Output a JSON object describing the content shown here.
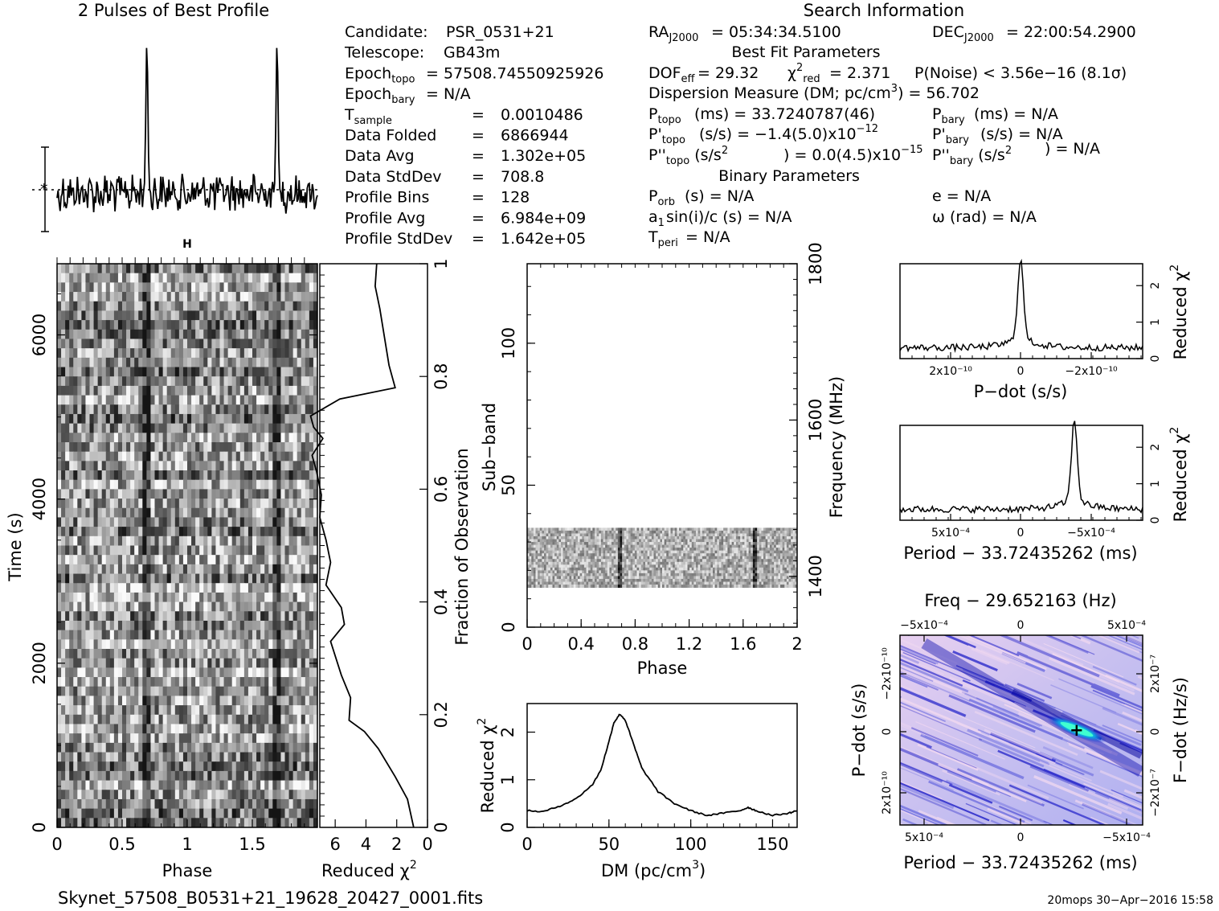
{
  "profile": {
    "title": "2 Pulses of Best Profile"
  },
  "info": {
    "search_title": "Search Information",
    "left": [
      {
        "label": "Candidate:",
        "value": "PSR_0531+21"
      },
      {
        "label": "Telescope:",
        "value": "GB43m"
      },
      {
        "label": "Epoch",
        "sub": "topo",
        "value": "= 57508.74550925926"
      },
      {
        "label": "Epoch",
        "sub": "bary",
        "value": "= N/A"
      },
      {
        "label": "T",
        "sub": "sample",
        "value": "0.0010486"
      },
      {
        "label": "Data Folded",
        "value": "6866944"
      },
      {
        "label": "Data Avg",
        "value": "1.302e+05"
      },
      {
        "label": "Data StdDev",
        "value": "708.8"
      },
      {
        "label": "Profile Bins",
        "value": "128"
      },
      {
        "label": "Profile Avg",
        "value": "6.984e+09"
      },
      {
        "label": "Profile StdDev",
        "value": "1.642e+05"
      }
    ],
    "ra": "= 05:34:34.5100",
    "dec": "= 22:00:54.2900",
    "best_fit_title": "Best Fit Parameters",
    "dof": "= 29.32",
    "chi2": "= 2.371",
    "pnoise": "P(Noise) < 3.56e−16   (8.1σ)",
    "dm_label": "Dispersion Measure (DM; pc/cm",
    "dm_value": ") = 56.702",
    "ptopo": "(ms) =  33.7240787(46)",
    "pdtopo": "(s/s) = −1.4(5.0)x10",
    "pdtopo_exp": "−12",
    "pddtopo": ") = 0.0(4.5)x10",
    "pddtopo_exp": "−15",
    "pbary": "(ms) = N/A",
    "pdbary": "(s/s) = N/A",
    "pddbary": ") = N/A",
    "binary_title": "Binary Parameters",
    "porb": "(s) = N/A",
    "asini": "sin(i)/c (s) = N/A",
    "tperi": "= N/A",
    "ecc": "e = N/A",
    "omega": "ω (rad) = N/A"
  },
  "labels": {
    "phase": "Phase",
    "time": "Time (s)",
    "reduced_chi2": "Reduced χ",
    "fraction": "Fraction of Observation",
    "subband": "Sub−band",
    "frequency": "Frequency (MHz)",
    "dm": "DM (pc/cm",
    "pdot": "P−dot (s/s)",
    "period": "Period − 33.72435262 (ms)",
    "freq_title": "Freq − 29.652163 (Hz)",
    "fdot": "F−dot (Hz/s)",
    "filename": "Skynet_57508_B0531+21_19628_20427_0001.fits",
    "footer": "20mops 30−Apr−2016 15:58"
  },
  "chart_data": [
    {
      "type": "line",
      "name": "profile",
      "x": [
        0,
        0.25,
        0.5,
        0.69,
        0.75,
        1.0,
        1.25,
        1.5,
        1.69,
        1.75,
        2.0
      ],
      "peaks_at_phase": [
        0.69,
        1.69
      ]
    },
    {
      "type": "heatmap",
      "name": "time-phase",
      "xlabel": "Phase",
      "ylabel": "Time (s)",
      "xlim": [
        0,
        2
      ],
      "ylim": [
        0,
        6867
      ],
      "xticks": [
        0,
        0.5,
        1,
        1.5
      ],
      "yticks": [
        0,
        2000,
        4000,
        6000
      ],
      "pulse_phases": [
        0.69,
        1.69
      ]
    },
    {
      "type": "line",
      "name": "reduced-chi2-vs-fraction",
      "xlabel": "Reduced χ²",
      "ylabel": "Fraction of Observation",
      "xlim": [
        7,
        0
      ],
      "ylim": [
        0,
        1
      ],
      "xticks": [
        6,
        4,
        2,
        0
      ],
      "yticks": [
        0,
        0.2,
        0.4,
        0.6,
        0.8,
        1
      ],
      "chi2": [
        0.9,
        1.3,
        2.1,
        3.2,
        4.1,
        5.1,
        5.0,
        5.6,
        6.3,
        5.4,
        5.6,
        6.6,
        6.3,
        6.6,
        7.0,
        6.9,
        7.2,
        7.5,
        6.8,
        7.4,
        7.6,
        5.7,
        2.1,
        2.5,
        2.8,
        3.1,
        3.4,
        3.3
      ],
      "fraction": [
        0.0,
        0.05,
        0.09,
        0.14,
        0.17,
        0.19,
        0.23,
        0.27,
        0.33,
        0.36,
        0.39,
        0.43,
        0.47,
        0.51,
        0.55,
        0.59,
        0.63,
        0.66,
        0.69,
        0.71,
        0.73,
        0.76,
        0.78,
        0.82,
        0.87,
        0.92,
        0.96,
        1.0
      ]
    },
    {
      "type": "heatmap",
      "name": "subband-phase",
      "xlabel": "Phase",
      "ylabel": "Sub−band",
      "xlim": [
        0,
        2
      ],
      "ylim": [
        0,
        128
      ],
      "xticks": [
        0,
        0.4,
        0.8,
        1.2,
        1.6,
        2
      ],
      "yticks": [
        0,
        50,
        100
      ],
      "freq_ticks": [
        1400,
        1600,
        1800
      ],
      "data_subbands": [
        14,
        35
      ],
      "pulse_phases": [
        0.69,
        1.69
      ]
    },
    {
      "type": "line",
      "name": "dm-curve",
      "xlabel": "DM (pc/cm³)",
      "ylabel": "Reduced χ²",
      "xlim": [
        0,
        165
      ],
      "ylim": [
        0,
        2.6
      ],
      "xticks": [
        0,
        50,
        100,
        150
      ],
      "yticks": [
        0,
        1,
        2
      ],
      "x": [
        0,
        10,
        20,
        30,
        40,
        45,
        50,
        53,
        56.7,
        60,
        65,
        70,
        80,
        90,
        100,
        110,
        120,
        130,
        135,
        140,
        150,
        160,
        165
      ],
      "y": [
        0.35,
        0.33,
        0.45,
        0.6,
        0.9,
        1.2,
        1.8,
        2.2,
        2.38,
        2.25,
        1.75,
        1.25,
        0.75,
        0.5,
        0.35,
        0.25,
        0.3,
        0.35,
        0.42,
        0.35,
        0.25,
        0.3,
        0.35
      ]
    },
    {
      "type": "line",
      "name": "pdot-curve",
      "xlabel": "P−dot (s/s)",
      "ylabel": "Reduced χ²",
      "xlim": [
        3.5e-10,
        -3.5e-10
      ],
      "ylim": [
        0,
        2.6
      ],
      "xtick_labels": [
        "2x10⁻¹⁰",
        "0",
        "−2x10⁻¹⁰"
      ],
      "yticks": [
        0,
        1,
        2
      ],
      "peak_at": 0,
      "peak_value": 2.4
    },
    {
      "type": "line",
      "name": "period-curve",
      "xlabel": "Period − 33.72435262 (ms)",
      "ylabel": "Reduced χ²",
      "xlim": [
        0.00065,
        -0.00065
      ],
      "ylim": [
        0,
        2.6
      ],
      "xtick_labels": [
        "5x10⁻⁴",
        "0",
        "−5x10⁻⁴"
      ],
      "yticks": [
        0,
        1,
        2
      ],
      "peak_at": -0.00028,
      "peak_value": 2.4
    },
    {
      "type": "heatmap",
      "name": "period-pdot-plane",
      "xlabel": "Period − 33.72435262 (ms)",
      "ylabel": "P−dot (s/s)",
      "top_label": "Freq − 29.652163 (Hz)",
      "right_label": "F−dot (Hz/s)",
      "best_period_offset": -0.00028,
      "best_pdot": 0
    }
  ]
}
